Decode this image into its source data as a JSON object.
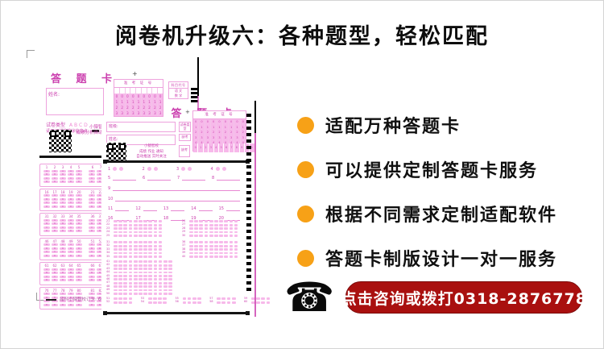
{
  "title": "阅卷机升级六：各种题型，轻松匹配",
  "features": [
    "适配万种答题卡",
    "可以提供定制答题卡服务",
    "根据不同需求定制适配软件",
    "答题卡制版设计一对一服务"
  ],
  "cta": {
    "label": "点击咨询或拨打0318-2876778"
  },
  "colors": {
    "orange": "#f7a117",
    "red": "#a9100f",
    "magenta": "#cb3fae",
    "pink": "#f7b9ea",
    "pink-border": "#eea2dd"
  },
  "sheet1": {
    "title": "答 题 卡",
    "name_label": "姓名:",
    "paper_type_label": "试卷类型",
    "paper_type_options": "A  B  C  D",
    "pencil_note": "请用2B铅笔填涂信息点",
    "qr_caption_1": "小猿智校",
    "qr_caption_2": "成绩分析自动推送",
    "exam_no_header": "准 考 证 号",
    "subject_header": "科目代号",
    "subject_row_1": "语 文",
    "subject_row_2": "数 学",
    "footer_note": "品科小猿智校订卡: 6016-26",
    "plus_mark": "+",
    "choice_letters": [
      "A",
      "B",
      "C",
      "D"
    ],
    "blocks": [
      {
        "start": 1
      },
      {
        "start": 16
      },
      {
        "start": 31
      },
      {
        "start": 46
      },
      {
        "start": 61
      },
      {
        "start": 76
      }
    ]
  },
  "sheet2": {
    "title": "答 题 卡",
    "class_label": "班级:",
    "name_label": "姓名:",
    "side_box_1": "试卷类型",
    "side_box_2": "缺考",
    "exam_no_header": "准 考 证 号",
    "absent_label": "缺考",
    "qr_caption_1": "小猿智校",
    "qr_caption_2": "成绩 作业 通知",
    "qr_caption_3": "自动推送 实时关注",
    "plus_mark": "+",
    "tf_items": [
      1,
      2,
      3,
      4
    ],
    "line_rows": [
      [
        5,
        6,
        7,
        8
      ],
      [
        9
      ],
      [
        10
      ],
      [
        11,
        12,
        13,
        14,
        15
      ],
      [
        16,
        17,
        18,
        19,
        20
      ]
    ],
    "choice_groups": [
      {
        "start": 21,
        "rows": 5
      },
      {
        "start": 26,
        "rows": 5
      },
      {
        "start": 31,
        "rows": 5
      },
      {
        "start": 36,
        "rows": 5
      }
    ],
    "big_block": {
      "start": 41,
      "rows": 10
    },
    "pair_groups": [
      {
        "start": 51
      },
      {
        "start": 53
      },
      {
        "start": 55
      },
      {
        "start": 57
      },
      {
        "start": 59
      }
    ]
  }
}
